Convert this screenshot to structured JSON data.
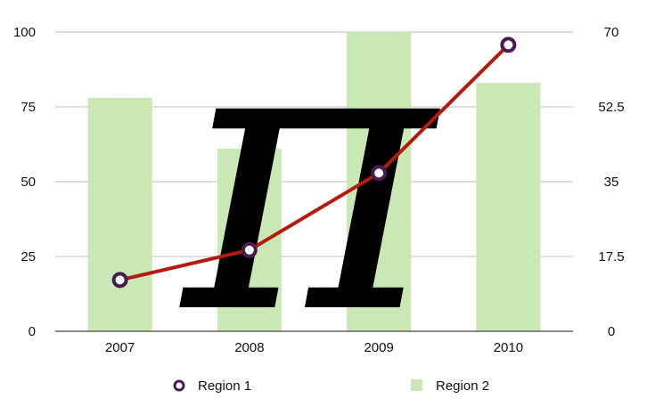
{
  "chart_data": {
    "type": "bar+line",
    "categories": [
      "2007",
      "2008",
      "2009",
      "2010"
    ],
    "series": [
      {
        "name": "Region 1",
        "type": "line",
        "axis": "right",
        "values": [
          12,
          19,
          37,
          67
        ],
        "color": "#b51b0c",
        "marker_color": "#4a1a52"
      },
      {
        "name": "Region 2",
        "type": "bar",
        "axis": "left",
        "values": [
          78,
          61,
          100,
          83
        ],
        "color": "#c9e8b4"
      }
    ],
    "left_axis": {
      "ticks": [
        "0",
        "25",
        "50",
        "75",
        "100"
      ],
      "range": [
        0,
        100
      ]
    },
    "right_axis": {
      "ticks": [
        "0",
        "17.5",
        "35",
        "52.5",
        "70"
      ],
      "range": [
        0,
        70
      ]
    },
    "grid": true,
    "legend_position": "bottom",
    "overlay_symbol": "π"
  }
}
